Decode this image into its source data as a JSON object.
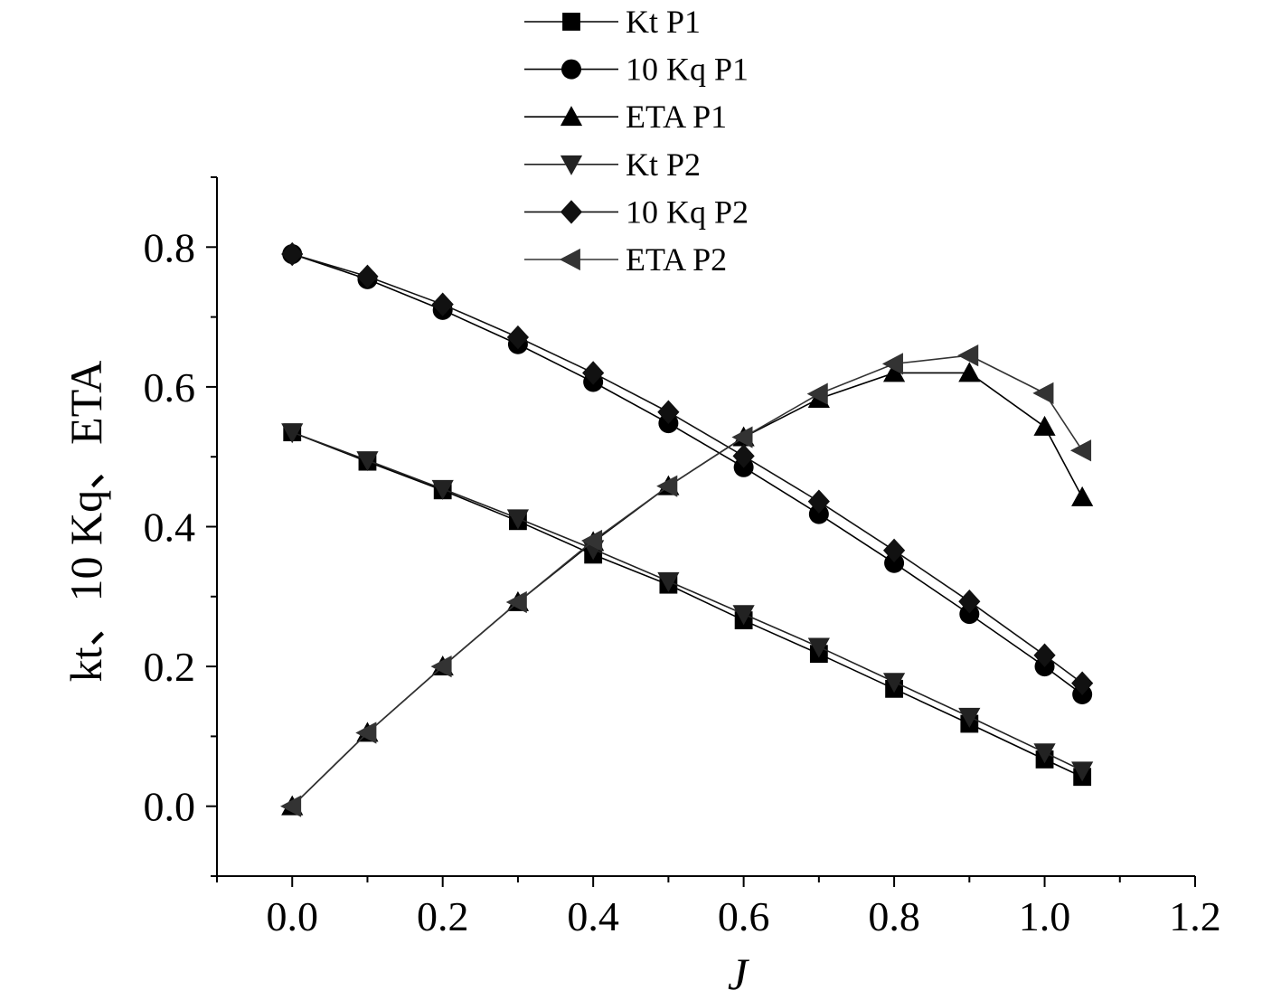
{
  "chart_data": {
    "type": "line",
    "title": "",
    "xlabel": "J",
    "ylabel": "kt、10 Kq、ETA",
    "xlim": [
      -0.1,
      1.2
    ],
    "ylim": [
      -0.1,
      0.9
    ],
    "xticks": [
      0.0,
      0.2,
      0.4,
      0.6,
      0.8,
      1.0,
      1.2
    ],
    "xtick_labels": [
      "0.0",
      "0.2",
      "0.4",
      "0.6",
      "0.8",
      "1.0",
      "1.2"
    ],
    "yticks": [
      0.0,
      0.2,
      0.4,
      0.6,
      0.8
    ],
    "ytick_labels": [
      "0.0",
      "0.2",
      "0.4",
      "0.6",
      "0.8"
    ],
    "grid": false,
    "legend_position": "top-center",
    "x": [
      0.0,
      0.1,
      0.2,
      0.3,
      0.4,
      0.5,
      0.6,
      0.7,
      0.8,
      0.9,
      1.0,
      1.05
    ],
    "series": [
      {
        "name": "Kt P1",
        "marker": "square",
        "color": "#000000",
        "values": [
          0.535,
          0.493,
          0.452,
          0.408,
          0.36,
          0.317,
          0.266,
          0.218,
          0.168,
          0.118,
          0.067,
          0.042
        ]
      },
      {
        "name": "10 Kq P1",
        "marker": "circle",
        "color": "#000000",
        "values": [
          0.79,
          0.754,
          0.71,
          0.661,
          0.607,
          0.548,
          0.485,
          0.418,
          0.348,
          0.275,
          0.2,
          0.16
        ]
      },
      {
        "name": "ETA P1",
        "marker": "triangle-up",
        "color": "#000000",
        "values": [
          0.0,
          0.105,
          0.2,
          0.292,
          0.378,
          0.458,
          0.528,
          0.583,
          0.62,
          0.62,
          0.543,
          0.442
        ]
      },
      {
        "name": "Kt P2",
        "marker": "triangle-down",
        "color": "#222222",
        "values": [
          0.535,
          0.495,
          0.454,
          0.412,
          0.368,
          0.322,
          0.275,
          0.228,
          0.178,
          0.128,
          0.077,
          0.051
        ]
      },
      {
        "name": "10 Kq P2",
        "marker": "diamond",
        "color": "#111111",
        "values": [
          0.79,
          0.758,
          0.718,
          0.671,
          0.62,
          0.564,
          0.501,
          0.436,
          0.366,
          0.293,
          0.216,
          0.176
        ]
      },
      {
        "name": "ETA P2",
        "marker": "triangle-left",
        "color": "#333333",
        "values": [
          0.0,
          0.105,
          0.2,
          0.292,
          0.38,
          0.458,
          0.528,
          0.59,
          0.633,
          0.645,
          0.591,
          0.509
        ]
      }
    ]
  }
}
